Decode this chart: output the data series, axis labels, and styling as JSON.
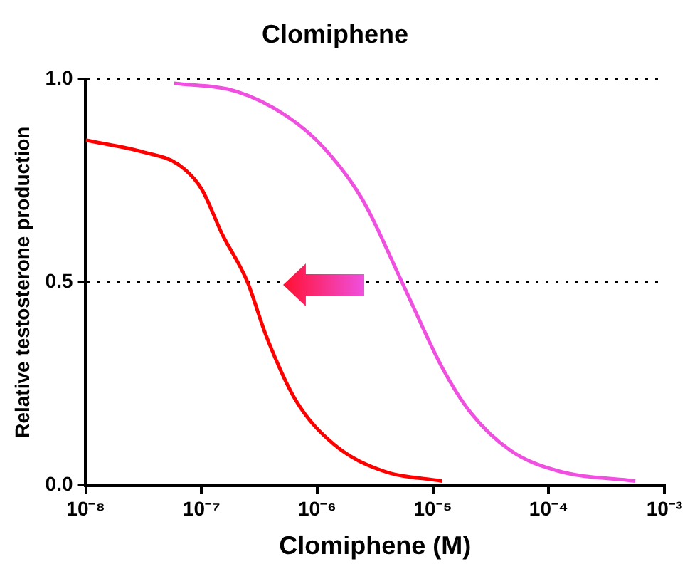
{
  "chart_data": {
    "type": "line",
    "title": "Clomiphene",
    "xlabel": "Clomiphene (M)",
    "ylabel": "Relative testosterone production",
    "series": [
      {
        "color": "#ff0000",
        "x": [
          1e-08,
          3.2e-08,
          6.3e-08,
          1e-07,
          1.5e-07,
          2.5e-07,
          3.6e-07,
          6.5e-07,
          1.4e-06,
          3.7e-06,
          1.2e-05
        ],
        "values": [
          0.85,
          0.82,
          0.79,
          0.73,
          0.62,
          0.5,
          0.37,
          0.21,
          0.1,
          0.035,
          0.01
        ]
      },
      {
        "color": "#f050e0",
        "x": [
          5.8e-08,
          2e-07,
          5.4e-07,
          1.15e-06,
          2.5e-06,
          5.4e-06,
          1.2e-05,
          2.1e-05,
          4.7e-05,
          0.00012,
          0.00056
        ],
        "values": [
          0.99,
          0.97,
          0.91,
          0.83,
          0.7,
          0.5,
          0.29,
          0.18,
          0.085,
          0.035,
          0.01
        ]
      }
    ],
    "log": "x",
    "xlim": [
      1e-08,
      0.001
    ],
    "xticks": [
      {
        "value": 1e-08,
        "label": "10⁻⁸"
      },
      {
        "value": 1e-07,
        "label": "10⁻⁷"
      },
      {
        "value": 1e-06,
        "label": "10⁻⁶"
      },
      {
        "value": 1e-05,
        "label": "10⁻⁵"
      },
      {
        "value": 0.0001,
        "label": "10⁻⁴"
      },
      {
        "value": 0.001,
        "label": "10⁻³"
      }
    ],
    "ylim": [
      0,
      1
    ],
    "yticks": [
      {
        "value": 0,
        "label": "0.0"
      },
      {
        "value": 0.5,
        "label": "0.5"
      },
      {
        "value": 1,
        "label": "1.0"
      }
    ],
    "grid": "y",
    "marker": "none",
    "line_style": "solid"
  }
}
